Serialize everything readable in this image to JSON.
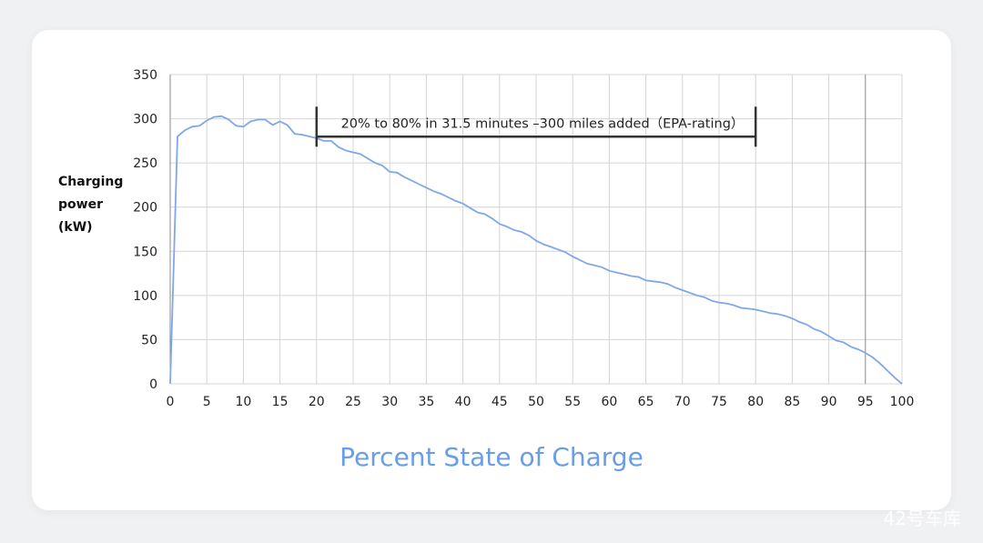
{
  "chart_data": {
    "type": "line",
    "xlabel": "Percent State of Charge",
    "ylabel": [
      "Charging",
      "power",
      "(kW)"
    ],
    "xlim": [
      0,
      100
    ],
    "ylim": [
      0,
      350
    ],
    "x_ticks": [
      0,
      5,
      10,
      15,
      20,
      25,
      30,
      35,
      40,
      45,
      50,
      55,
      60,
      65,
      70,
      75,
      80,
      85,
      90,
      95,
      100
    ],
    "y_ticks": [
      0,
      50,
      100,
      150,
      200,
      250,
      300,
      350
    ],
    "grid": true,
    "line_color": "#7ea8ea",
    "series": [
      {
        "x": [
          0,
          1,
          2,
          3,
          4,
          5,
          6,
          7,
          8,
          9,
          10,
          11,
          12,
          13,
          14,
          15,
          16,
          17,
          18,
          19,
          20,
          21,
          22,
          23,
          24,
          25,
          26,
          27,
          28,
          29,
          30,
          31,
          32,
          33,
          34,
          35,
          36,
          37,
          38,
          39,
          40,
          41,
          42,
          43,
          44,
          45,
          46,
          47,
          48,
          49,
          50,
          51,
          52,
          53,
          54,
          55,
          56,
          57,
          58,
          59,
          60,
          61,
          62,
          63,
          64,
          65,
          66,
          67,
          68,
          69,
          70,
          71,
          72,
          73,
          74,
          75,
          76,
          77,
          78,
          79,
          80,
          81,
          82,
          83,
          84,
          85,
          86,
          87,
          88,
          89,
          90,
          91,
          92,
          93,
          94,
          95,
          96,
          97,
          98,
          99,
          100
        ],
        "values": [
          0,
          280,
          287,
          291,
          292,
          298,
          302,
          303,
          299,
          292,
          291,
          297,
          299,
          299,
          293,
          297,
          293,
          283,
          282,
          280,
          278,
          275,
          275,
          268,
          264,
          262,
          260,
          255,
          250,
          247,
          240,
          239,
          234,
          230,
          226,
          222,
          218,
          215,
          211,
          207,
          204,
          199,
          194,
          192,
          187,
          181,
          178,
          174,
          172,
          168,
          162,
          158,
          155,
          152,
          149,
          144,
          140,
          136,
          134,
          132,
          128,
          126,
          124,
          122,
          121,
          117,
          116,
          115,
          113,
          109,
          106,
          103,
          100,
          98,
          94,
          92,
          91,
          89,
          86,
          85,
          84,
          82,
          80,
          79,
          77,
          74,
          70,
          67,
          62,
          59,
          54,
          49,
          47,
          42,
          39,
          35,
          30,
          23,
          15,
          7,
          0
        ]
      }
    ],
    "annotation": {
      "text": "20% to 80% in 31.5 minutes –300 miles added（EPA-rating）",
      "x_start": 20,
      "x_end": 80,
      "y": 290
    }
  },
  "watermark": "42号车库"
}
